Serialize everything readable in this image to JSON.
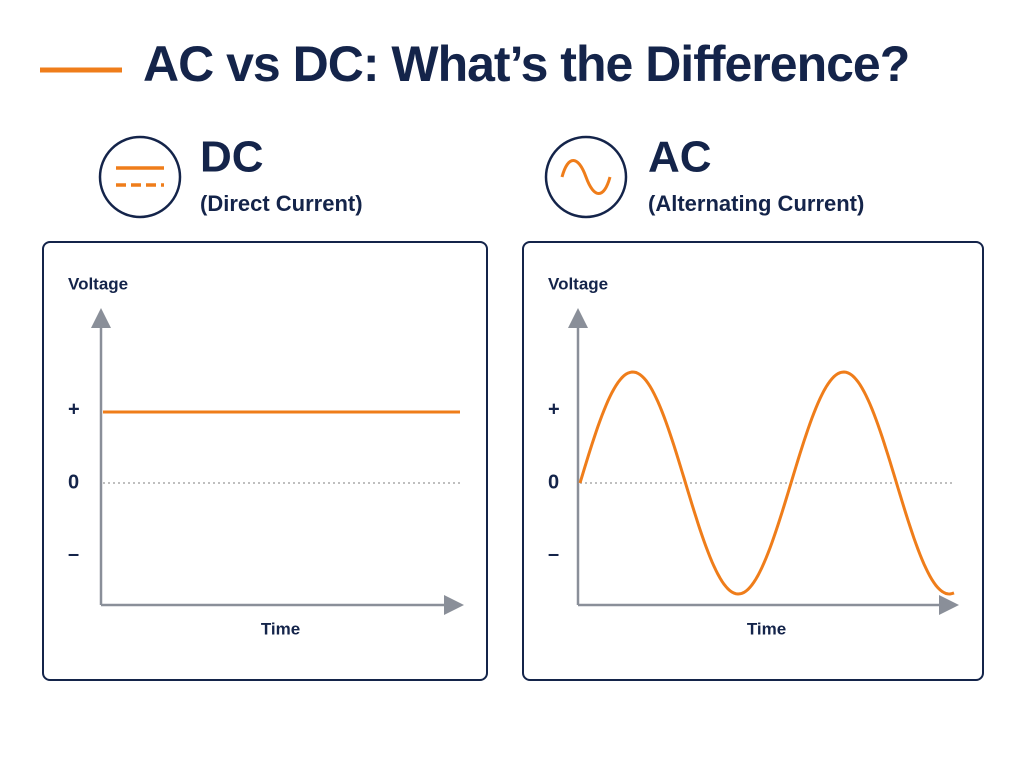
{
  "header": {
    "title": "AC vs DC: What’s the Difference?"
  },
  "sections": [
    {
      "heading": "DC",
      "subheading": "(Direct Current)",
      "graph": {
        "y_label": "Voltage",
        "y_levels": [
          "+",
          "0",
          "–"
        ],
        "x_label": "Time"
      }
    },
    {
      "heading": "AC",
      "subheading": "(Alternating Current)",
      "graph": {
        "y_label": "Voltage",
        "y_levels": [
          "+",
          "0",
          "–"
        ],
        "x_label": "Time"
      }
    }
  ]
}
